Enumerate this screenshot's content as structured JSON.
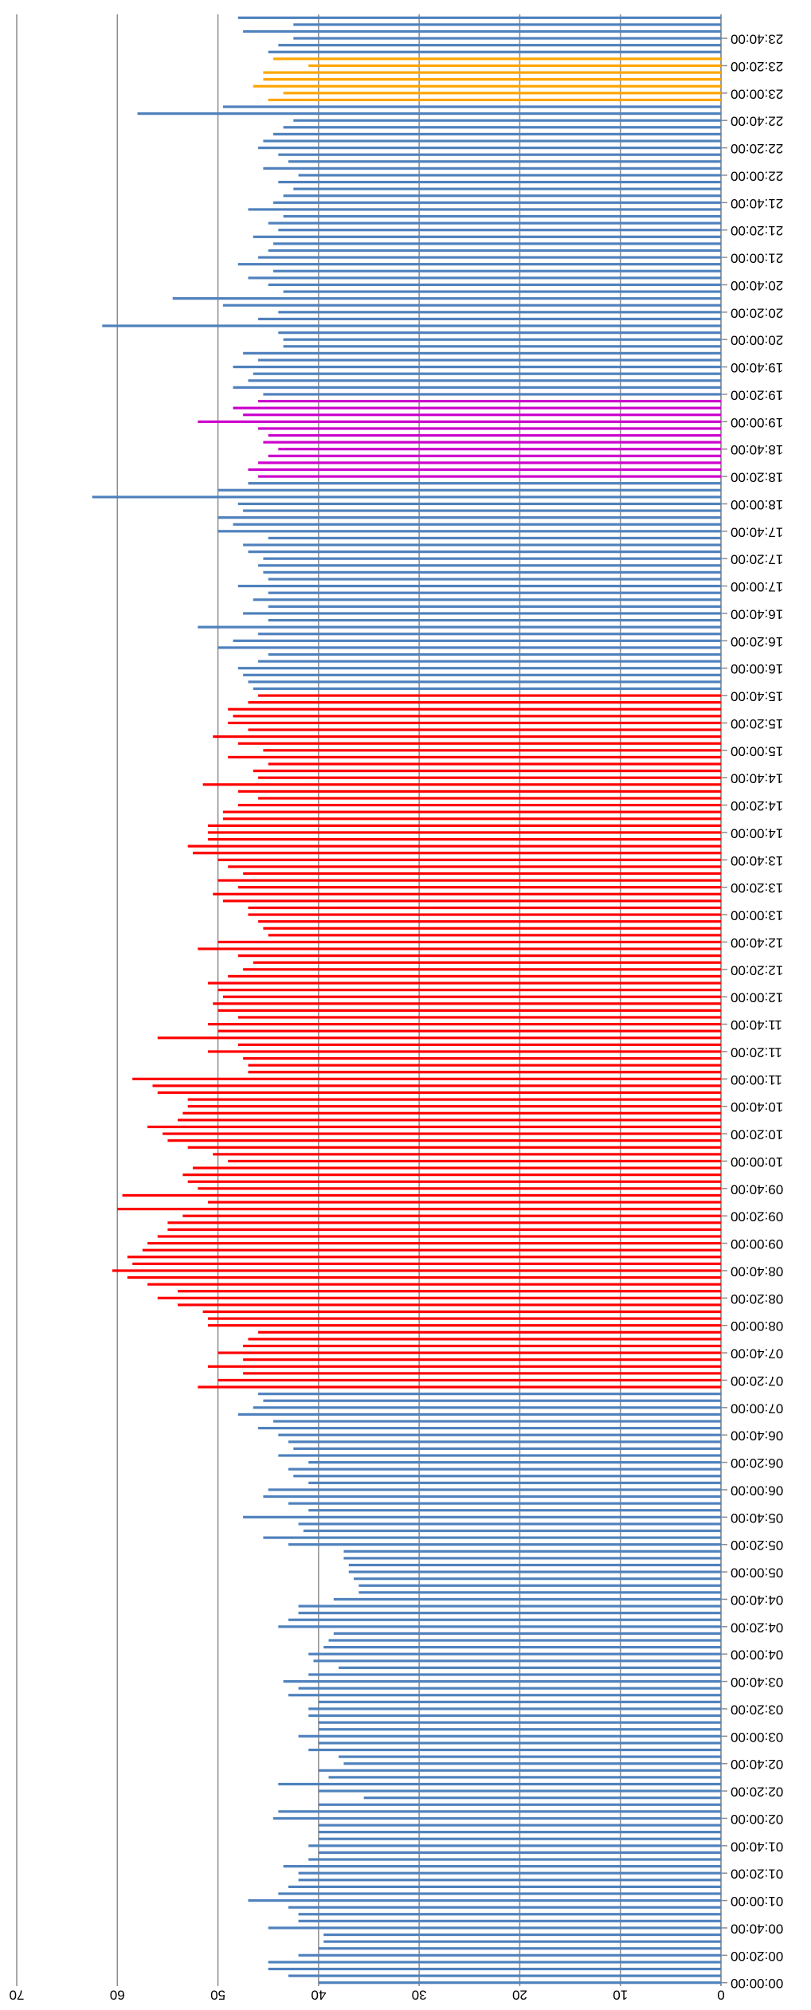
{
  "chart_data": {
    "type": "bar",
    "categories": [
      "00:00:00",
      null,
      null,
      null,
      "00:20:00",
      null,
      null,
      null,
      "00:40:00",
      null,
      null,
      null,
      "01:00:00",
      null,
      null,
      null,
      "01:20:00",
      null,
      null,
      null,
      "01:40:00",
      null,
      null,
      null,
      "02:00:00",
      null,
      null,
      null,
      "02:20:00",
      null,
      null,
      null,
      "02:40:00",
      null,
      null,
      null,
      "03:00:00",
      null,
      null,
      null,
      "03:20:00",
      null,
      null,
      null,
      "03:40:00",
      null,
      null,
      null,
      "04:00:00",
      null,
      null,
      null,
      "04:20:00",
      null,
      null,
      null,
      "04:40:00",
      null,
      null,
      null,
      "05:00:00",
      null,
      null,
      null,
      "05:20:00",
      null,
      null,
      null,
      "05:40:00",
      null,
      null,
      null,
      "06:00:00",
      null,
      null,
      null,
      "06:20:00",
      null,
      null,
      null,
      "06:40:00",
      null,
      null,
      null,
      "07:00:00",
      null,
      null,
      null,
      "07:20:00",
      null,
      null,
      null,
      "07:40:00",
      null,
      null,
      null,
      "08:00:00",
      null,
      null,
      null,
      "08:20:00",
      null,
      null,
      null,
      "08:40:00",
      null,
      null,
      null,
      "09:00:00",
      null,
      null,
      null,
      "09:20:00",
      null,
      null,
      null,
      "09:40:00",
      null,
      null,
      null,
      "10:00:00",
      null,
      null,
      null,
      "10:20:00",
      null,
      null,
      null,
      "10:40:00",
      null,
      null,
      null,
      "11:00:00",
      null,
      null,
      null,
      "11:20:00",
      null,
      null,
      null,
      "11:40:00",
      null,
      null,
      null,
      "12:00:00",
      null,
      null,
      null,
      "12:20:00",
      null,
      null,
      null,
      "12:40:00",
      null,
      null,
      null,
      "13:00:00",
      null,
      null,
      null,
      "13:20:00",
      null,
      null,
      null,
      "13:40:00",
      null,
      null,
      null,
      "14:00:00",
      null,
      null,
      null,
      "14:20:00",
      null,
      null,
      null,
      "14:40:00",
      null,
      null,
      null,
      "15:00:00",
      null,
      null,
      null,
      "15:20:00",
      null,
      null,
      null,
      "15:40:00",
      null,
      null,
      null,
      "16:00:00",
      null,
      null,
      null,
      "16:20:00",
      null,
      null,
      null,
      "16:40:00",
      null,
      null,
      null,
      "17:00:00",
      null,
      null,
      null,
      "17:20:00",
      null,
      null,
      null,
      "17:40:00",
      null,
      null,
      null,
      "18:00:00",
      null,
      null,
      null,
      "18:20:00",
      null,
      null,
      null,
      "18:40:00",
      null,
      null,
      null,
      "19:00:00",
      null,
      null,
      null,
      "19:20:00",
      null,
      null,
      null,
      "19:40:00",
      null,
      null,
      null,
      "20:00:00",
      null,
      null,
      null,
      "20:20:00",
      null,
      null,
      null,
      "20:40:00",
      null,
      null,
      null,
      "21:00:00",
      null,
      null,
      null,
      "21:20:00",
      null,
      null,
      null,
      "21:40:00",
      null,
      null,
      null,
      "22:00:00",
      null,
      null,
      null,
      "22:20:00",
      null,
      null,
      null,
      "22:40:00",
      null,
      null,
      null,
      "23:00:00",
      null,
      null,
      null,
      "23:20:00",
      null,
      null,
      null,
      "23:40:00",
      null,
      null,
      null
    ],
    "values": [
      40,
      43,
      45,
      45,
      42,
      40,
      39.5,
      39.5,
      45,
      42,
      42,
      43,
      47,
      44,
      43,
      42,
      42,
      43.5,
      41,
      40,
      41,
      40,
      40,
      40,
      44.5,
      44,
      40,
      35.5,
      40,
      44,
      39,
      40,
      37.5,
      38,
      41,
      40,
      42,
      40,
      40,
      41,
      41,
      40,
      43,
      42,
      43.5,
      41,
      38,
      40.5,
      41,
      39.5,
      39,
      38.5,
      44,
      43,
      42,
      42,
      38.5,
      36,
      36,
      36.5,
      37,
      37,
      37.5,
      37.5,
      43,
      45.5,
      41.5,
      42,
      47.5,
      41,
      43,
      45.5,
      45,
      41,
      42.5,
      43,
      41,
      44,
      42.5,
      43,
      44,
      46,
      44.5,
      48,
      46.5,
      45.5,
      46,
      52,
      50,
      47.5,
      51,
      47.5,
      50,
      47.5,
      47,
      46,
      51,
      51,
      51.5,
      54,
      56,
      54,
      57,
      59,
      60.5,
      58.5,
      59,
      57.5,
      57,
      56,
      55,
      55,
      53.5,
      60,
      51,
      59.5,
      52,
      53,
      53.5,
      52.5,
      49,
      50.5,
      53,
      55,
      55.5,
      57,
      54,
      53.5,
      53,
      53,
      56,
      56.5,
      58.5,
      47,
      47,
      47.5,
      51,
      48,
      56,
      50,
      51,
      48,
      50,
      50.5,
      49.5,
      50,
      51,
      49,
      47.5,
      46.5,
      48,
      52,
      50,
      45,
      45.5,
      46,
      47,
      47,
      49.5,
      50.5,
      48,
      50,
      47.5,
      49,
      50,
      52.5,
      53,
      51,
      51,
      51,
      49.5,
      49.5,
      48,
      46,
      48,
      51.5,
      46,
      46.5,
      45,
      49,
      45.5,
      48,
      50.5,
      47,
      49,
      48.5,
      49,
      47,
      46,
      46.5,
      47,
      47.5,
      48,
      46,
      45,
      50,
      48.5,
      46,
      52,
      45,
      47.5,
      45,
      46.5,
      45,
      48,
      45,
      45.5,
      46,
      45.5,
      47,
      47.5,
      45,
      50,
      48.5,
      50,
      47.5,
      48,
      62.5,
      50,
      47,
      46,
      47,
      46,
      45,
      44,
      45.5,
      45,
      46,
      52,
      47.5,
      48.5,
      46,
      45.5,
      48.5,
      47,
      46.5,
      48.5,
      46,
      47.5,
      43.5,
      43.5,
      44,
      61.5,
      46,
      44,
      49.5,
      54.5,
      43.5,
      45,
      47,
      44.5,
      48,
      46,
      45,
      44.5,
      46.5,
      44,
      45,
      43.5,
      47,
      44.5,
      43.5,
      42.5,
      44,
      42,
      45.5,
      43,
      44,
      46,
      45.5,
      44.5,
      43.5,
      42.5,
      58,
      49.5,
      45,
      43.5,
      46.5,
      45.5,
      45.5,
      41,
      44.5,
      45,
      44,
      42.5,
      47.5,
      42.5,
      48
    ],
    "colors": [
      "#4f81bd",
      "#4f81bd",
      "#4f81bd",
      "#4f81bd",
      "#4f81bd",
      "#4f81bd",
      "#4f81bd",
      "#4f81bd",
      "#4f81bd",
      "#4f81bd",
      "#4f81bd",
      "#4f81bd",
      "#4f81bd",
      "#4f81bd",
      "#4f81bd",
      "#4f81bd",
      "#4f81bd",
      "#4f81bd",
      "#4f81bd",
      "#4f81bd",
      "#4f81bd",
      "#4f81bd",
      "#4f81bd",
      "#4f81bd",
      "#4f81bd",
      "#4f81bd",
      "#4f81bd",
      "#4f81bd",
      "#4f81bd",
      "#4f81bd",
      "#4f81bd",
      "#4f81bd",
      "#4f81bd",
      "#4f81bd",
      "#4f81bd",
      "#4f81bd",
      "#4f81bd",
      "#4f81bd",
      "#4f81bd",
      "#4f81bd",
      "#4f81bd",
      "#4f81bd",
      "#4f81bd",
      "#4f81bd",
      "#4f81bd",
      "#4f81bd",
      "#4f81bd",
      "#4f81bd",
      "#4f81bd",
      "#4f81bd",
      "#4f81bd",
      "#4f81bd",
      "#4f81bd",
      "#4f81bd",
      "#4f81bd",
      "#4f81bd",
      "#4f81bd",
      "#4f81bd",
      "#4f81bd",
      "#4f81bd",
      "#4f81bd",
      "#4f81bd",
      "#4f81bd",
      "#4f81bd",
      "#4f81bd",
      "#4f81bd",
      "#4f81bd",
      "#4f81bd",
      "#4f81bd",
      "#4f81bd",
      "#4f81bd",
      "#4f81bd",
      "#4f81bd",
      "#4f81bd",
      "#4f81bd",
      "#4f81bd",
      "#4f81bd",
      "#4f81bd",
      "#4f81bd",
      "#4f81bd",
      "#4f81bd",
      "#4f81bd",
      "#4f81bd",
      "#4f81bd",
      "#4f81bd",
      "#4f81bd",
      "#4f81bd",
      "#ff0000",
      "#ff0000",
      "#ff0000",
      "#ff0000",
      "#ff0000",
      "#ff0000",
      "#ff0000",
      "#ff0000",
      "#ff0000",
      "#ff0000",
      "#ff0000",
      "#ff0000",
      "#ff0000",
      "#ff0000",
      "#ff0000",
      "#ff0000",
      "#ff0000",
      "#ff0000",
      "#ff0000",
      "#ff0000",
      "#ff0000",
      "#ff0000",
      "#ff0000",
      "#ff0000",
      "#ff0000",
      "#ff0000",
      "#ff0000",
      "#ff0000",
      "#ff0000",
      "#ff0000",
      "#ff0000",
      "#ff0000",
      "#ff0000",
      "#ff0000",
      "#ff0000",
      "#ff0000",
      "#ff0000",
      "#ff0000",
      "#ff0000",
      "#ff0000",
      "#ff0000",
      "#ff0000",
      "#ff0000",
      "#ff0000",
      "#ff0000",
      "#ff0000",
      "#ff0000",
      "#ff0000",
      "#ff0000",
      "#ff0000",
      "#ff0000",
      "#ff0000",
      "#ff0000",
      "#ff0000",
      "#ff0000",
      "#ff0000",
      "#ff0000",
      "#ff0000",
      "#ff0000",
      "#ff0000",
      "#ff0000",
      "#ff0000",
      "#ff0000",
      "#ff0000",
      "#ff0000",
      "#ff0000",
      "#ff0000",
      "#ff0000",
      "#ff0000",
      "#ff0000",
      "#ff0000",
      "#ff0000",
      "#ff0000",
      "#ff0000",
      "#ff0000",
      "#ff0000",
      "#ff0000",
      "#ff0000",
      "#ff0000",
      "#ff0000",
      "#ff0000",
      "#ff0000",
      "#ff0000",
      "#ff0000",
      "#ff0000",
      "#ff0000",
      "#ff0000",
      "#ff0000",
      "#ff0000",
      "#ff0000",
      "#ff0000",
      "#ff0000",
      "#ff0000",
      "#ff0000",
      "#ff0000",
      "#ff0000",
      "#ff0000",
      "#ff0000",
      "#ff0000",
      "#ff0000",
      "#ff0000",
      "#ff0000",
      "#4f81bd",
      "#4f81bd",
      "#4f81bd",
      "#4f81bd",
      "#4f81bd",
      "#4f81bd",
      "#4f81bd",
      "#4f81bd",
      "#4f81bd",
      "#4f81bd",
      "#4f81bd",
      "#4f81bd",
      "#4f81bd",
      "#4f81bd",
      "#4f81bd",
      "#4f81bd",
      "#4f81bd",
      "#4f81bd",
      "#4f81bd",
      "#4f81bd",
      "#4f81bd",
      "#4f81bd",
      "#4f81bd",
      "#4f81bd",
      "#4f81bd",
      "#4f81bd",
      "#4f81bd",
      "#4f81bd",
      "#4f81bd",
      "#4f81bd",
      "#4f81bd",
      "#cc00cc",
      "#cc00cc",
      "#cc00cc",
      "#cc00cc",
      "#cc00cc",
      "#cc00cc",
      "#cc00cc",
      "#cc00cc",
      "#cc00cc",
      "#cc00cc",
      "#cc00cc",
      "#cc00cc",
      "#4f81bd",
      "#4f81bd",
      "#4f81bd",
      "#4f81bd",
      "#4f81bd",
      "#4f81bd",
      "#4f81bd",
      "#4f81bd",
      "#4f81bd",
      "#4f81bd",
      "#4f81bd",
      "#4f81bd",
      "#4f81bd",
      "#4f81bd",
      "#4f81bd",
      "#4f81bd",
      "#4f81bd",
      "#4f81bd",
      "#4f81bd",
      "#4f81bd",
      "#4f81bd",
      "#4f81bd",
      "#4f81bd",
      "#4f81bd",
      "#4f81bd",
      "#4f81bd",
      "#4f81bd",
      "#4f81bd",
      "#4f81bd",
      "#4f81bd",
      "#4f81bd",
      "#4f81bd",
      "#4f81bd",
      "#4f81bd",
      "#4f81bd",
      "#4f81bd",
      "#4f81bd",
      "#4f81bd",
      "#4f81bd",
      "#4f81bd",
      "#4f81bd",
      "#4f81bd",
      "#4f81bd",
      "#ffa500",
      "#ffa500",
      "#ffa500",
      "#ffa500",
      "#ffa500",
      "#ffa500",
      "#ffa500",
      "#4f81bd",
      "#4f81bd",
      "#4f81bd",
      "#4f81bd",
      "#4f81bd",
      "#4f81bd",
      "#4f81bd",
      "#4f81bd",
      "#4f81bd"
    ],
    "ylim": [
      0,
      70
    ],
    "yticks": [
      0,
      10,
      20,
      30,
      40,
      50,
      60,
      70
    ],
    "grid": true
  }
}
